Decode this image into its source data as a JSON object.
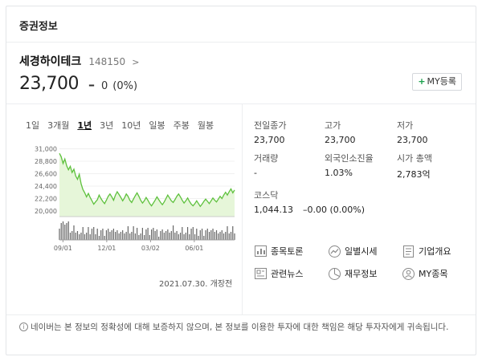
{
  "header": {
    "title": "증권정보"
  },
  "stock": {
    "name": "세경하이테크",
    "code": "148150",
    "chevron": ">",
    "price": "23,700",
    "change_sign": "–",
    "change": "0",
    "change_rate": "(0%)"
  },
  "my_button": {
    "plus": "+",
    "label": "MY등록"
  },
  "tabs": [
    {
      "label": "1일"
    },
    {
      "label": "3개월"
    },
    {
      "label": "1년"
    },
    {
      "label": "3년"
    },
    {
      "label": "10년"
    },
    {
      "label": "일봉"
    },
    {
      "label": "주봉"
    },
    {
      "label": "월봉"
    }
  ],
  "chart_data": {
    "type": "line",
    "y_ticks": [
      "31,000",
      "28,800",
      "26,600",
      "24,400",
      "22,200",
      "20,000"
    ],
    "y_tick_values": [
      31000,
      28800,
      26600,
      24400,
      22200,
      20000
    ],
    "ylim": [
      19000,
      31500
    ],
    "x_ticks": [
      "09/01",
      "12/01",
      "03/02",
      "06/01"
    ],
    "line_color": "#5ec13d",
    "fill_color": "#e6f6d9",
    "values": [
      30200,
      29600,
      28400,
      29200,
      28000,
      27300,
      27900,
      26800,
      27400,
      26200,
      25600,
      26500,
      24800,
      23800,
      23200,
      22500,
      23100,
      22400,
      21800,
      21200,
      21600,
      22000,
      22800,
      22200,
      21700,
      21300,
      21900,
      22600,
      23000,
      22500,
      21900,
      22800,
      23400,
      22900,
      22400,
      21800,
      22300,
      23000,
      22600,
      21900,
      21500,
      22100,
      22700,
      23200,
      22600,
      21900,
      21400,
      21800,
      22400,
      21900,
      21300,
      20900,
      21400,
      21900,
      22500,
      22000,
      21500,
      21100,
      21600,
      22200,
      22800,
      22300,
      21800,
      21500,
      22000,
      22600,
      23000,
      22500,
      21900,
      21400,
      21800,
      22300,
      21700,
      21200,
      20900,
      21300,
      21800,
      21300,
      20800,
      21200,
      21700,
      22100,
      21700,
      21300,
      21800,
      22300,
      21900,
      21600,
      22100,
      22600,
      22200,
      22800,
      23300,
      22800,
      23400,
      23900,
      23200,
      23700
    ]
  },
  "date_note": "2021.07.30. 개장전",
  "info": {
    "items": [
      {
        "label": "전일종가",
        "value": "23,700"
      },
      {
        "label": "고가",
        "value": "23,700"
      },
      {
        "label": "저가",
        "value": "23,700"
      },
      {
        "label": "거래량",
        "value": "-"
      },
      {
        "label": "외국인소진율",
        "value": "1.03%"
      },
      {
        "label": "시가 총액",
        "value": "2,783억"
      }
    ],
    "kosdaq": {
      "label": "코스닥",
      "value": "1,044.13",
      "change": "–0.00 (0.00%)"
    }
  },
  "links": [
    {
      "label": "종목토론",
      "icon": "chart-board-icon"
    },
    {
      "label": "일별시세",
      "icon": "trend-icon"
    },
    {
      "label": "기업개요",
      "icon": "document-icon"
    },
    {
      "label": "관련뉴스",
      "icon": "news-icon"
    },
    {
      "label": "재무정보",
      "icon": "pie-icon"
    },
    {
      "label": "MY종목",
      "icon": "person-icon"
    }
  ],
  "notice": {
    "icon": "i",
    "text": "네이버는 본 정보의 정확성에 대해 보증하지 않으며, 본 정보를 이용한 투자에 대한 책임은 해당 투자자에게 귀속됩니다."
  }
}
